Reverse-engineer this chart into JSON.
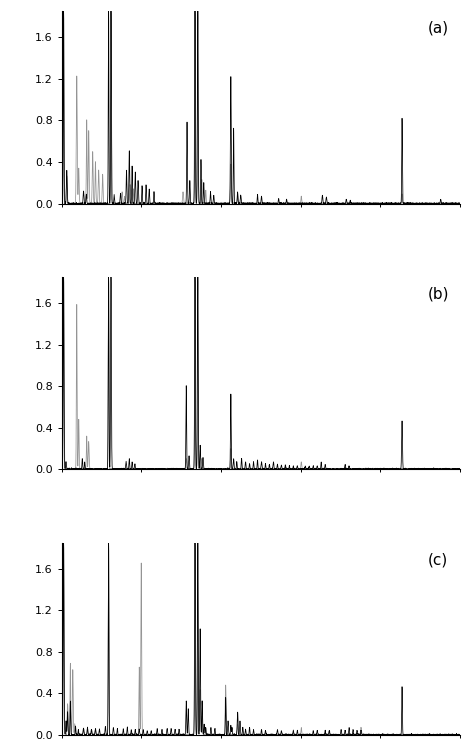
{
  "panels": [
    "(a)",
    "(b)",
    "(c)"
  ],
  "ylim": [
    0,
    1.85
  ],
  "yticks": [
    0.0,
    0.4,
    0.8,
    1.2,
    1.6
  ],
  "xlim": [
    0,
    1000
  ],
  "background_color": "#ffffff",
  "line_color_black": "#000000",
  "line_color_gray": "#888888",
  "panel_label_fontsize": 11,
  "tick_fontsize": 8,
  "panel_a": {
    "black_peaks": [
      [
        5,
        1.85
      ],
      [
        13,
        0.32
      ],
      [
        55,
        0.12
      ],
      [
        62,
        0.09
      ],
      [
        118,
        1.85
      ],
      [
        124,
        1.85
      ],
      [
        132,
        0.08
      ],
      [
        148,
        0.1
      ],
      [
        163,
        0.32
      ],
      [
        170,
        0.5
      ],
      [
        177,
        0.36
      ],
      [
        185,
        0.3
      ],
      [
        192,
        0.22
      ],
      [
        202,
        0.17
      ],
      [
        212,
        0.18
      ],
      [
        220,
        0.14
      ],
      [
        232,
        0.11
      ],
      [
        315,
        0.78
      ],
      [
        322,
        0.22
      ],
      [
        335,
        1.85
      ],
      [
        342,
        1.85
      ],
      [
        350,
        0.42
      ],
      [
        357,
        0.2
      ],
      [
        374,
        0.11
      ],
      [
        382,
        0.08
      ],
      [
        425,
        1.22
      ],
      [
        432,
        0.72
      ],
      [
        442,
        0.11
      ],
      [
        450,
        0.08
      ],
      [
        492,
        0.09
      ],
      [
        502,
        0.07
      ],
      [
        545,
        0.05
      ],
      [
        565,
        0.04
      ],
      [
        655,
        0.08
      ],
      [
        665,
        0.06
      ],
      [
        715,
        0.04
      ],
      [
        725,
        0.03
      ],
      [
        855,
        0.82
      ],
      [
        952,
        0.04
      ]
    ],
    "gray_peaks": [
      [
        5,
        1.85
      ],
      [
        13,
        0.26
      ],
      [
        38,
        1.22
      ],
      [
        43,
        0.34
      ],
      [
        63,
        0.8
      ],
      [
        68,
        0.7
      ],
      [
        78,
        0.5
      ],
      [
        85,
        0.4
      ],
      [
        93,
        0.32
      ],
      [
        103,
        0.28
      ],
      [
        124,
        1.85
      ],
      [
        152,
        0.11
      ],
      [
        158,
        0.07
      ],
      [
        172,
        0.18
      ],
      [
        180,
        0.14
      ],
      [
        305,
        0.11
      ],
      [
        335,
        1.85
      ],
      [
        342,
        1.85
      ],
      [
        352,
        0.23
      ],
      [
        362,
        0.13
      ],
      [
        425,
        0.38
      ],
      [
        442,
        0.07
      ],
      [
        602,
        0.07
      ],
      [
        855,
        0.09
      ]
    ]
  },
  "panel_b": {
    "black_peaks": [
      [
        5,
        1.85
      ],
      [
        11,
        0.07
      ],
      [
        52,
        0.1
      ],
      [
        58,
        0.07
      ],
      [
        118,
        1.85
      ],
      [
        124,
        1.85
      ],
      [
        162,
        0.07
      ],
      [
        170,
        0.1
      ],
      [
        177,
        0.07
      ],
      [
        184,
        0.05
      ],
      [
        313,
        0.8
      ],
      [
        320,
        0.13
      ],
      [
        335,
        1.85
      ],
      [
        342,
        1.85
      ],
      [
        348,
        0.23
      ],
      [
        355,
        0.11
      ],
      [
        425,
        0.72
      ],
      [
        432,
        0.1
      ],
      [
        440,
        0.07
      ],
      [
        452,
        0.1
      ],
      [
        462,
        0.07
      ],
      [
        472,
        0.05
      ],
      [
        482,
        0.07
      ],
      [
        492,
        0.09
      ],
      [
        502,
        0.07
      ],
      [
        512,
        0.05
      ],
      [
        522,
        0.04
      ],
      [
        532,
        0.07
      ],
      [
        542,
        0.05
      ],
      [
        552,
        0.04
      ],
      [
        562,
        0.04
      ],
      [
        572,
        0.03
      ],
      [
        582,
        0.03
      ],
      [
        592,
        0.03
      ],
      [
        612,
        0.03
      ],
      [
        622,
        0.03
      ],
      [
        632,
        0.03
      ],
      [
        642,
        0.03
      ],
      [
        652,
        0.07
      ],
      [
        662,
        0.04
      ],
      [
        712,
        0.04
      ],
      [
        722,
        0.03
      ],
      [
        855,
        0.46
      ]
    ],
    "gray_peaks": [
      [
        5,
        1.85
      ],
      [
        38,
        1.58
      ],
      [
        43,
        0.48
      ],
      [
        63,
        0.32
      ],
      [
        68,
        0.26
      ],
      [
        118,
        1.85
      ],
      [
        313,
        0.1
      ],
      [
        335,
        1.85
      ],
      [
        342,
        1.85
      ],
      [
        352,
        0.1
      ],
      [
        425,
        0.2
      ],
      [
        602,
        0.07
      ]
    ]
  },
  "panel_c": {
    "black_peaks": [
      [
        5,
        1.85
      ],
      [
        11,
        0.13
      ],
      [
        15,
        0.22
      ],
      [
        22,
        0.32
      ],
      [
        35,
        0.08
      ],
      [
        42,
        0.05
      ],
      [
        55,
        0.06
      ],
      [
        65,
        0.07
      ],
      [
        75,
        0.05
      ],
      [
        85,
        0.06
      ],
      [
        95,
        0.05
      ],
      [
        110,
        0.08
      ],
      [
        118,
        1.85
      ],
      [
        130,
        0.07
      ],
      [
        140,
        0.06
      ],
      [
        155,
        0.06
      ],
      [
        165,
        0.07
      ],
      [
        175,
        0.05
      ],
      [
        185,
        0.05
      ],
      [
        195,
        0.05
      ],
      [
        205,
        0.05
      ],
      [
        215,
        0.04
      ],
      [
        225,
        0.04
      ],
      [
        240,
        0.06
      ],
      [
        252,
        0.05
      ],
      [
        265,
        0.06
      ],
      [
        275,
        0.06
      ],
      [
        285,
        0.05
      ],
      [
        295,
        0.05
      ],
      [
        313,
        0.32
      ],
      [
        318,
        0.25
      ],
      [
        335,
        1.85
      ],
      [
        342,
        1.85
      ],
      [
        348,
        1.02
      ],
      [
        353,
        0.32
      ],
      [
        358,
        0.1
      ],
      [
        362,
        0.07
      ],
      [
        375,
        0.07
      ],
      [
        385,
        0.06
      ],
      [
        412,
        0.36
      ],
      [
        418,
        0.13
      ],
      [
        425,
        0.09
      ],
      [
        428,
        0.07
      ],
      [
        442,
        0.22
      ],
      [
        448,
        0.13
      ],
      [
        455,
        0.07
      ],
      [
        462,
        0.05
      ],
      [
        472,
        0.07
      ],
      [
        482,
        0.05
      ],
      [
        502,
        0.05
      ],
      [
        512,
        0.04
      ],
      [
        542,
        0.05
      ],
      [
        552,
        0.04
      ],
      [
        582,
        0.04
      ],
      [
        592,
        0.04
      ],
      [
        632,
        0.04
      ],
      [
        642,
        0.04
      ],
      [
        662,
        0.04
      ],
      [
        672,
        0.04
      ],
      [
        702,
        0.05
      ],
      [
        712,
        0.04
      ],
      [
        722,
        0.07
      ],
      [
        732,
        0.05
      ],
      [
        742,
        0.04
      ],
      [
        752,
        0.04
      ],
      [
        855,
        0.46
      ]
    ],
    "gray_peaks": [
      [
        5,
        1.85
      ],
      [
        15,
        0.3
      ],
      [
        22,
        0.68
      ],
      [
        28,
        0.62
      ],
      [
        33,
        0.1
      ],
      [
        55,
        0.06
      ],
      [
        65,
        0.06
      ],
      [
        75,
        0.05
      ],
      [
        85,
        0.05
      ],
      [
        118,
        1.85
      ],
      [
        195,
        0.65
      ],
      [
        200,
        1.65
      ],
      [
        335,
        1.85
      ],
      [
        342,
        1.85
      ],
      [
        348,
        0.43
      ],
      [
        353,
        0.18
      ],
      [
        412,
        0.48
      ],
      [
        442,
        0.1
      ],
      [
        602,
        0.07
      ],
      [
        752,
        0.07
      ]
    ]
  }
}
